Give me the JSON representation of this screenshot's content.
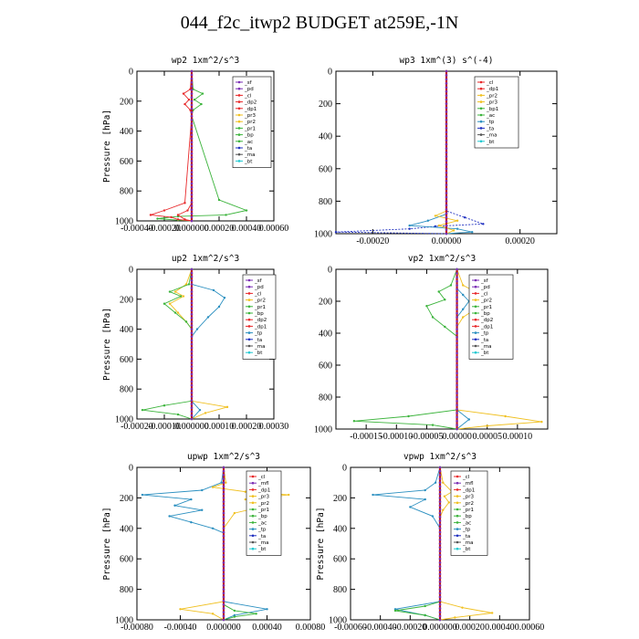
{
  "page": {
    "title": "044_f2c_itwp2  BUDGET at259E,-1N"
  },
  "colors": {
    "sf": "#7b2fb5",
    "pd": "#7b2fb5",
    "cl": "#e8282a",
    "ms": "#7b2fb5",
    "mfl": "#7b2fb5",
    "dp1": "#e8282a",
    "dp2": "#e8282a",
    "pr1": "#3cb43c",
    "pr2": "#f0c020",
    "pr3": "#f0c020",
    "bp": "#3cb43c",
    "bp1": "#3cb43c",
    "ac": "#3cb43c",
    "tp": "#2a8fc0",
    "ta": "#2030c0",
    "ma": "#555555",
    "bt": "#20c8d0",
    "zero": "#c01818"
  },
  "chart_data": [
    {
      "type": "line",
      "title": "wp2   1xm^2/s^3",
      "ylabel": "Pressure [hPa]",
      "xlim": [
        -0.0004,
        0.0006
      ],
      "ylim": [
        1000,
        0
      ],
      "xticks": [
        -0.0004,
        -0.0002,
        0.0,
        0.0002,
        0.0004,
        0.0006
      ],
      "xtick_labels": [
        "-0.00040",
        "-0.00020",
        "0.000000",
        "0.00020",
        "0.00040",
        "0.00060"
      ],
      "yticks": [
        0,
        200,
        400,
        600,
        800,
        1000
      ],
      "ytick_labels": [
        "0",
        "200",
        "400",
        "600",
        "800",
        "1000"
      ],
      "legend": [
        "_sf",
        "_pd",
        "_cl",
        "_dp2",
        "_dp1",
        "_pr3",
        "_pr2",
        "_pr1",
        "_bp",
        "_ac",
        "_ta",
        "_ma",
        "_bt"
      ],
      "series": [
        {
          "name": "_pr1",
          "color_key": "pr1",
          "x": [
            0,
            1e-05,
            8e-05,
            2e-05,
            7e-05,
            1e-05,
            0,
            0.0002,
            0.0004,
            0.00025,
            -0.0001,
            -0.00025,
            -0.0001,
            0
          ],
          "y": [
            0,
            120,
            150,
            190,
            220,
            260,
            300,
            860,
            930,
            960,
            970,
            985,
            995,
            1000
          ]
        },
        {
          "name": "_dp1",
          "color_key": "dp1",
          "x": [
            0,
            -1e-05,
            -6e-05,
            -2e-05,
            -5e-05,
            -1e-05,
            0,
            -5e-05,
            -0.0002,
            -0.0003,
            -0.00015,
            -0.0001,
            0
          ],
          "y": [
            0,
            120,
            150,
            190,
            220,
            260,
            300,
            880,
            930,
            960,
            975,
            990,
            1000
          ]
        },
        {
          "name": "_dp2",
          "color_key": "dp2",
          "x": [
            0,
            0,
            -3e-05,
            -0.0001,
            -5e-05,
            0
          ],
          "y": [
            0,
            880,
            930,
            960,
            990,
            1000
          ]
        },
        {
          "name": "_ma",
          "color_key": "ma",
          "x": [
            0,
            0
          ],
          "y": [
            0,
            1000
          ]
        }
      ]
    },
    {
      "type": "line",
      "title": "wp3   1xm^(3) s^(-4)",
      "ylabel": "",
      "xlim": [
        -0.0003,
        0.0003
      ],
      "ylim": [
        1000,
        0
      ],
      "xticks": [
        -0.0002,
        0.0,
        0.0002
      ],
      "xtick_labels": [
        "-0.00020",
        "0.00000",
        "0.00020"
      ],
      "yticks": [
        0,
        200,
        400,
        600,
        800,
        1000
      ],
      "ytick_labels": [
        "0",
        "200",
        "400",
        "600",
        "800",
        "1000"
      ],
      "legend": [
        "_cl",
        "_dp1",
        "_pr2",
        "_pr3",
        "_bp1",
        "_ac",
        "_tp",
        "_ta",
        "_ma",
        "_bt"
      ],
      "series": [
        {
          "name": "_ta",
          "color_key": "ta",
          "x": [
            0,
            0,
            5e-05,
            0.0001,
            -3e-05,
            -0.0001,
            -0.0003,
            0
          ],
          "y": [
            0,
            860,
            900,
            940,
            955,
            970,
            990,
            1000
          ]
        },
        {
          "name": "_tp",
          "color_key": "tp",
          "x": [
            0,
            0,
            -5e-05,
            -0.0001,
            3e-05,
            7e-05,
            0
          ],
          "y": [
            0,
            880,
            920,
            950,
            970,
            990,
            1000
          ]
        },
        {
          "name": "_pr2",
          "color_key": "pr2",
          "x": [
            0,
            0,
            -3e-05,
            3e-05,
            -2e-05,
            2e-05,
            0
          ],
          "y": [
            0,
            860,
            890,
            920,
            950,
            980,
            1000
          ]
        },
        {
          "name": "_dp1",
          "color_key": "dp1",
          "x": [
            0,
            0
          ],
          "y": [
            0,
            1000
          ]
        }
      ]
    },
    {
      "type": "line",
      "title": "up2   1xm^2/s^3",
      "ylabel": "Pressure [hPa]",
      "xlim": [
        -0.0002,
        0.0003
      ],
      "ylim": [
        1000,
        0
      ],
      "xticks": [
        -0.0002,
        -0.0001,
        0.0,
        0.0001,
        0.0002,
        0.0003
      ],
      "xtick_labels": [
        "-0.00020",
        "-0.00010",
        "0.000000",
        "0.00010",
        "0.00020",
        "0.00030"
      ],
      "yticks": [
        0,
        200,
        400,
        600,
        800,
        1000
      ],
      "ytick_labels": [
        "0",
        "200",
        "400",
        "600",
        "800",
        "1000"
      ],
      "legend": [
        "_sf",
        "_pd",
        "_cl",
        "_pr2",
        "_pr1",
        "_bp",
        "_dp2",
        "_dp1",
        "_tp",
        "_ta",
        "_ma",
        "_bt"
      ],
      "series": [
        {
          "name": "_tp",
          "color_key": "tp",
          "x": [
            0,
            0,
            8e-05,
            0.00012,
            0.0001,
            6e-05,
            2e-05,
            0,
            0,
            3e-05,
            0
          ],
          "y": [
            0,
            100,
            140,
            190,
            250,
            320,
            400,
            450,
            880,
            940,
            1000
          ]
        },
        {
          "name": "_pr2",
          "color_key": "pr2",
          "x": [
            0,
            -2e-05,
            -6e-05,
            -3e-05,
            -8e-05,
            -5e-05,
            -2e-05,
            0,
            0,
            0.00013,
            5e-05,
            0
          ],
          "y": [
            0,
            100,
            150,
            180,
            230,
            290,
            350,
            400,
            880,
            920,
            960,
            1000
          ]
        },
        {
          "name": "_pr1",
          "color_key": "pr1",
          "x": [
            0,
            -1e-05,
            -8e-05,
            -4e-05,
            -0.0001,
            -6e-05,
            -2e-05,
            0,
            0,
            -0.0001,
            -0.00018,
            -5e-05,
            0
          ],
          "y": [
            0,
            100,
            150,
            180,
            230,
            290,
            350,
            400,
            880,
            910,
            940,
            970,
            1000
          ]
        },
        {
          "name": "_ma",
          "color_key": "ma",
          "x": [
            0,
            0
          ],
          "y": [
            0,
            1000
          ]
        }
      ]
    },
    {
      "type": "line",
      "title": "vp2   1xm^2/s^3",
      "ylabel": "",
      "xlim": [
        -0.0002,
        0.00015
      ],
      "ylim": [
        1000,
        0
      ],
      "xticks": [
        -0.00015,
        -0.0001,
        -5e-05,
        0.0,
        5e-05,
        0.0001
      ],
      "xtick_labels": [
        "-0.00015",
        "-0.00010",
        "-0.00005",
        "0.00000",
        "0.00005",
        "0.00010"
      ],
      "yticks": [
        0,
        200,
        400,
        600,
        800,
        1000
      ],
      "ytick_labels": [
        "0",
        "200",
        "400",
        "600",
        "800",
        "1000"
      ],
      "legend": [
        "_sf",
        "_pd",
        "_cl",
        "_pr2",
        "_pr1",
        "_bp",
        "_dp2",
        "_dp1",
        "_tp",
        "_ta",
        "_ma",
        "_bt"
      ],
      "series": [
        {
          "name": "_pr1",
          "color_key": "pr1",
          "x": [
            0,
            -1e-05,
            -3e-05,
            -2e-05,
            -5e-05,
            -4e-05,
            -2e-05,
            0,
            0,
            -8e-05,
            -0.00017,
            -4e-05,
            0
          ],
          "y": [
            0,
            100,
            140,
            190,
            230,
            300,
            360,
            420,
            880,
            920,
            950,
            975,
            1000
          ]
        },
        {
          "name": "_pr2",
          "color_key": "pr2",
          "x": [
            0,
            1e-05,
            4e-05,
            2e-05,
            3e-05,
            1e-05,
            0,
            0,
            8e-05,
            0.00014,
            5e-05,
            0
          ],
          "y": [
            0,
            100,
            160,
            200,
            250,
            300,
            360,
            880,
            920,
            955,
            980,
            1000
          ]
        },
        {
          "name": "_tp",
          "color_key": "tp",
          "x": [
            0,
            0,
            1e-05,
            2e-05,
            1e-05,
            0,
            0,
            2e-05,
            0
          ],
          "y": [
            0,
            120,
            160,
            200,
            250,
            300,
            880,
            940,
            1000
          ]
        },
        {
          "name": "_ma",
          "color_key": "ma",
          "x": [
            0,
            0
          ],
          "y": [
            0,
            1000
          ]
        }
      ]
    },
    {
      "type": "line",
      "title": "upwp   1xm^2/s^3",
      "ylabel": "Pressure [hPa]",
      "xlim": [
        -0.0008,
        0.0008
      ],
      "ylim": [
        1000,
        0
      ],
      "xticks": [
        -0.0008,
        -0.0004,
        0.0,
        0.0004,
        0.0008
      ],
      "xtick_labels": [
        "-0.00080",
        "-0.00040",
        "0.000000",
        "0.00040",
        "0.00080"
      ],
      "yticks": [
        0,
        200,
        400,
        600,
        800,
        1000
      ],
      "ytick_labels": [
        "0",
        "200",
        "400",
        "600",
        "800",
        "1000"
      ],
      "legend": [
        "_cl",
        "_mfl",
        "_dp1",
        "_pr3",
        "_pr2",
        "_pr1",
        "_bp",
        "_ac",
        "_tp",
        "_ta",
        "_ma",
        "_bt"
      ],
      "series": [
        {
          "name": "_tp",
          "color_key": "tp",
          "x": [
            0,
            -2e-05,
            -0.0002,
            -0.00075,
            -0.0003,
            -0.00045,
            -0.0002,
            -0.0005,
            -0.0003,
            -0.0001,
            0,
            0,
            0.0004,
            0.0001,
            0
          ],
          "y": [
            0,
            100,
            150,
            180,
            210,
            250,
            280,
            320,
            360,
            400,
            430,
            880,
            930,
            970,
            1000
          ]
        },
        {
          "name": "_pr2",
          "color_key": "pr2",
          "x": [
            0,
            2e-05,
            -0.0001,
            0.0002,
            0.0006,
            0.0002,
            0.0004,
            0.0001,
            0,
            0,
            -0.0004,
            -0.0001,
            0
          ],
          "y": [
            0,
            100,
            130,
            160,
            180,
            210,
            250,
            300,
            400,
            880,
            930,
            960,
            1000
          ]
        },
        {
          "name": "_pr1",
          "color_key": "pr1",
          "x": [
            0,
            0,
            0.0001,
            0.0003,
            0.0001,
            0
          ],
          "y": [
            0,
            900,
            940,
            960,
            980,
            1000
          ]
        },
        {
          "name": "_ma",
          "color_key": "ma",
          "x": [
            0,
            0
          ],
          "y": [
            0,
            1000
          ]
        }
      ]
    },
    {
      "type": "line",
      "title": "vpwp   1xm^2/s^3",
      "ylabel": "Pressure [hPa]",
      "xlim": [
        -0.0006,
        0.0006
      ],
      "ylim": [
        1000,
        0
      ],
      "xticks": [
        -0.0006,
        -0.0004,
        -0.0002,
        0.0,
        0.0002,
        0.0004,
        0.0006
      ],
      "xtick_labels": [
        "-0.00060",
        "-0.00040",
        "-0.00020",
        "0.000000",
        "0.00020",
        "0.00040",
        "0.00060"
      ],
      "yticks": [
        0,
        200,
        400,
        600,
        800,
        1000
      ],
      "ytick_labels": [
        "0",
        "200",
        "400",
        "600",
        "800",
        "1000"
      ],
      "legend": [
        "_cl",
        "_mfl",
        "_dp1",
        "_pr3",
        "_pr2",
        "_pr1",
        "_bp",
        "_ac",
        "_tp",
        "_ta",
        "_ma",
        "_bt"
      ],
      "series": [
        {
          "name": "_tp",
          "color_key": "tp",
          "x": [
            0,
            -3e-05,
            -0.0001,
            -0.00045,
            -0.0001,
            -0.0002,
            -5e-05,
            0,
            0,
            -0.0003,
            -0.0001,
            0
          ],
          "y": [
            0,
            100,
            150,
            180,
            210,
            260,
            320,
            400,
            880,
            930,
            970,
            1000
          ]
        },
        {
          "name": "_pr2",
          "color_key": "pr2",
          "x": [
            0,
            2e-05,
            8e-05,
            3e-05,
            6e-05,
            2e-05,
            0,
            0,
            0.00015,
            0.00035,
            0.0001,
            0
          ],
          "y": [
            0,
            100,
            160,
            190,
            230,
            280,
            330,
            880,
            920,
            955,
            985,
            1000
          ]
        },
        {
          "name": "_pr1",
          "color_key": "pr1",
          "x": [
            0,
            0,
            -0.0001,
            -0.0003,
            -0.0001,
            0
          ],
          "y": [
            0,
            880,
            910,
            940,
            970,
            1000
          ]
        },
        {
          "name": "_ma",
          "color_key": "ma",
          "x": [
            0,
            0
          ],
          "y": [
            0,
            1000
          ]
        }
      ]
    }
  ]
}
